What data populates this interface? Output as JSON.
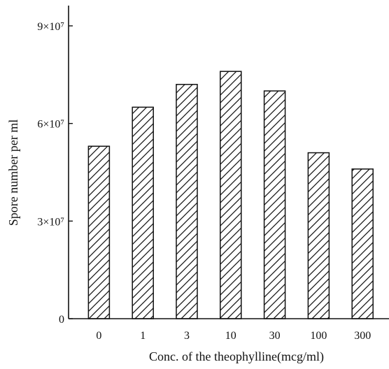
{
  "chart_data": {
    "type": "bar",
    "title": "",
    "xlabel": "Conc. of the theophylline(mcg/ml)",
    "ylabel": "Spore number per ml",
    "categories": [
      "0",
      "1",
      "3",
      "10",
      "30",
      "100",
      "300"
    ],
    "values": [
      53000000,
      65000000,
      72000000,
      76000000,
      70000000,
      51000000,
      46000000
    ],
    "ylim": [
      0,
      100000000
    ],
    "y_ticks": [
      {
        "value": 0,
        "label": "0"
      },
      {
        "value": 30000000,
        "label": "3×10⁷"
      },
      {
        "value": 60000000,
        "label": "6×10⁷"
      },
      {
        "value": 90000000,
        "label": "9×10⁷"
      }
    ],
    "bar_fill": "diagonal hatch",
    "grid": false,
    "legend": "none"
  }
}
